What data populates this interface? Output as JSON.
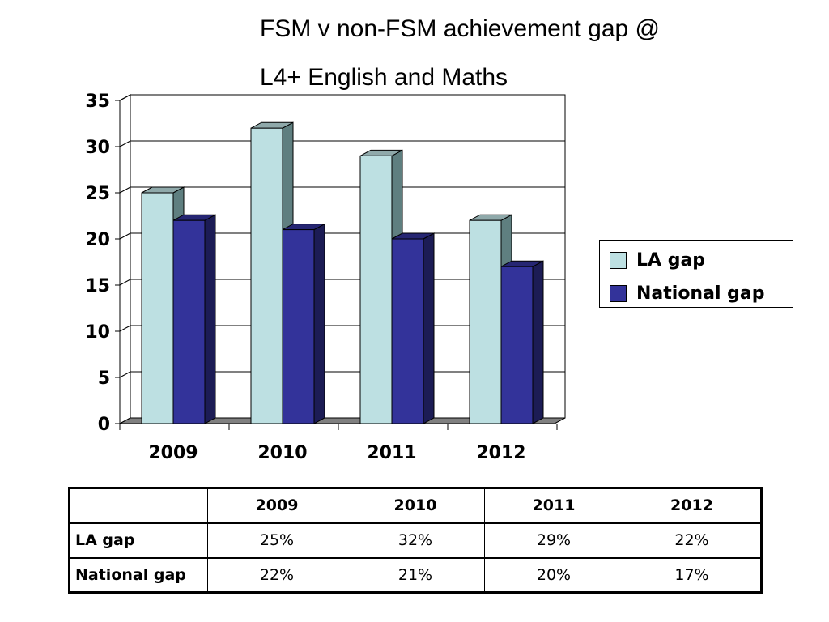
{
  "title": {
    "line1": "FSM v non-FSM achievement gap @",
    "line2": "L4+ English and Maths"
  },
  "colors": {
    "la_gap": "#bde0e2",
    "la_gap_side": "#5f7f80",
    "la_gap_top": "#8fa9aa",
    "national_gap": "#33339a",
    "national_gap_side": "#1c1c55",
    "national_gap_top": "#262673",
    "floor": "#808080"
  },
  "chart_data": {
    "type": "bar",
    "style": "3d-clustered-column",
    "categories": [
      "2009",
      "2010",
      "2011",
      "2012"
    ],
    "series": [
      {
        "name": "LA gap",
        "values": [
          25,
          32,
          29,
          22
        ]
      },
      {
        "name": "National gap",
        "values": [
          22,
          21,
          20,
          17
        ]
      }
    ],
    "ylim": [
      0,
      35
    ],
    "yticks": [
      "0",
      "5",
      "10",
      "15",
      "20",
      "25",
      "30",
      "35"
    ],
    "grid": true,
    "legend_position": "right"
  },
  "legend": {
    "items": [
      "LA gap",
      "National gap"
    ]
  },
  "table": {
    "headers": [
      "",
      "2009",
      "2010",
      "2011",
      "2012"
    ],
    "rows": [
      {
        "label": "LA gap",
        "values": [
          "25%",
          "32%",
          "29%",
          "22%"
        ]
      },
      {
        "label": "National gap",
        "values": [
          "22%",
          "21%",
          "20%",
          "17%"
        ]
      }
    ]
  }
}
